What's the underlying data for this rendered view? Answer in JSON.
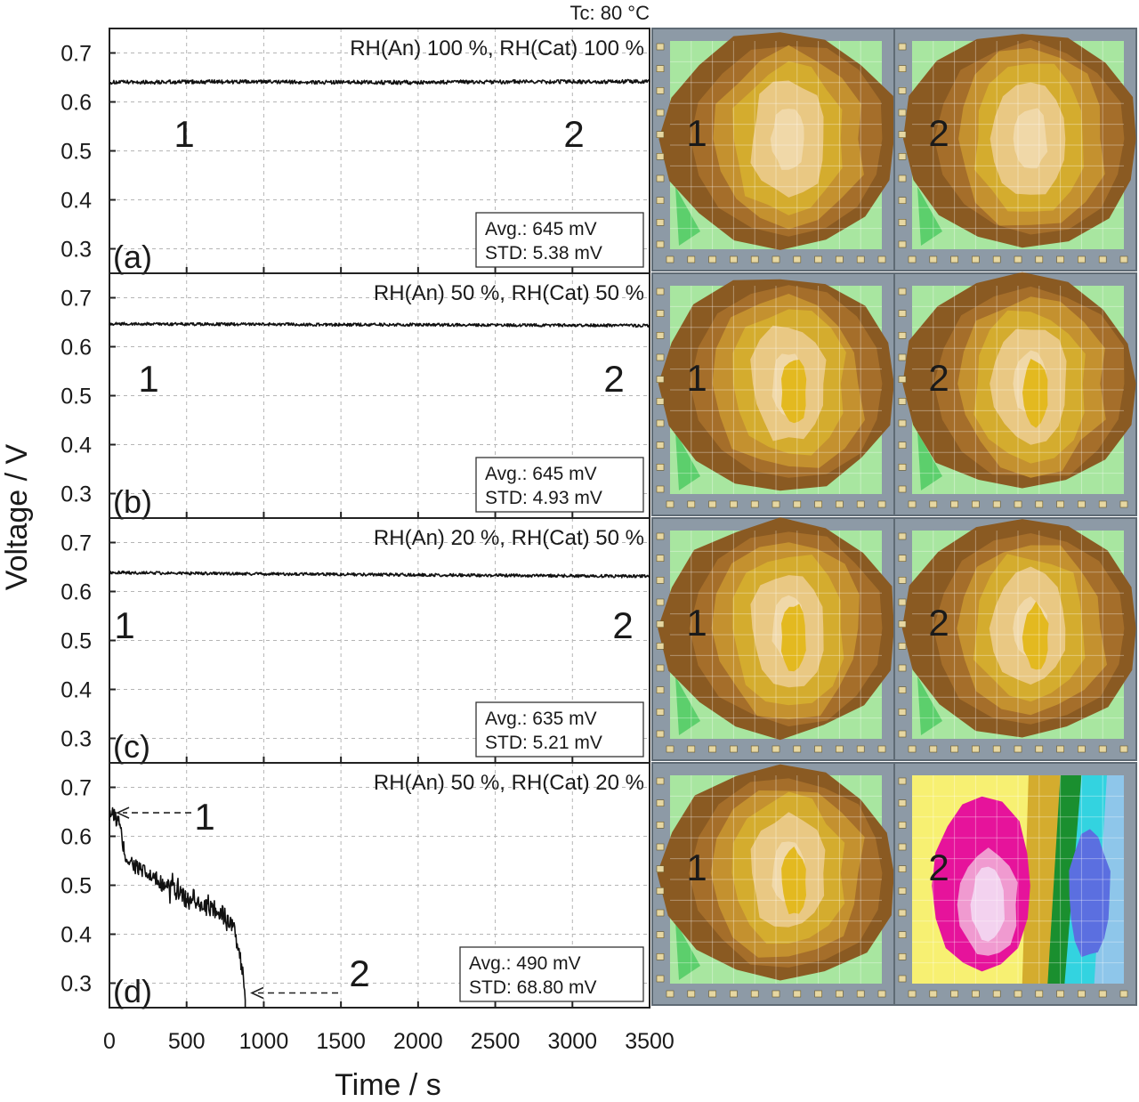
{
  "header": "Tc: 80 °C",
  "chart_data": {
    "type": "line",
    "xlabel": "Time / s",
    "ylabel": "Voltage / V",
    "xlim": [
      0,
      3500
    ],
    "ylim": [
      0.25,
      0.75
    ],
    "x_ticks": [
      "0",
      "500",
      "1000",
      "1500",
      "2000",
      "2500",
      "3000",
      "3500"
    ],
    "y_ticks": [
      "0.3",
      "0.4",
      "0.5",
      "0.6",
      "0.7"
    ],
    "grid": true,
    "panels": [
      {
        "label": "(a)",
        "condition": "RH(An) 100 %, RH(Cat) 100 %",
        "avg": "Avg.: 645 mV",
        "std": "STD: 5.38 mV",
        "point_1": "1",
        "point_2": "2",
        "series": {
          "x": [
            0,
            500,
            1000,
            1500,
            2000,
            2500,
            3000,
            3500
          ],
          "y": [
            0.64,
            0.641,
            0.641,
            0.64,
            0.64,
            0.641,
            0.641,
            0.642
          ],
          "noise": 0.004,
          "x_end": 3500
        }
      },
      {
        "label": "(b)",
        "condition": "RH(An) 50 %, RH(Cat) 50 %",
        "avg": "Avg.: 645 mV",
        "std": "STD: 4.93 mV",
        "point_1": "1",
        "point_2": "2",
        "series": {
          "x": [
            0,
            500,
            1000,
            1500,
            2000,
            2500,
            3000,
            3500
          ],
          "y": [
            0.647,
            0.646,
            0.646,
            0.645,
            0.645,
            0.644,
            0.644,
            0.643
          ],
          "noise": 0.003,
          "x_end": 3500
        }
      },
      {
        "label": "(c)",
        "condition": "RH(An) 20 %, RH(Cat) 50 %",
        "avg": "Avg.: 635 mV",
        "std": "STD: 5.21 mV",
        "point_1": "1",
        "point_2": "2",
        "series": {
          "x": [
            0,
            500,
            1000,
            1500,
            2000,
            2500,
            3000,
            3500
          ],
          "y": [
            0.639,
            0.637,
            0.636,
            0.635,
            0.634,
            0.633,
            0.632,
            0.631
          ],
          "noise": 0.003,
          "x_end": 3500
        }
      },
      {
        "label": "(d)",
        "condition": "RH(An) 50 %, RH(Cat) 20 %",
        "avg": "Avg.: 490 mV",
        "std": "STD: 68.80 mV",
        "point_1": "1",
        "point_2": "2",
        "series": {
          "x": [
            0,
            60,
            100,
            150,
            200,
            300,
            400,
            500,
            600,
            700,
            800,
            860,
            880
          ],
          "y": [
            0.65,
            0.63,
            0.56,
            0.545,
            0.53,
            0.51,
            0.495,
            0.47,
            0.46,
            0.45,
            0.42,
            0.33,
            0.28
          ],
          "noise": 0.018,
          "x_end": 880
        }
      }
    ]
  },
  "maps": {
    "colors": {
      "frame": "#8d9aa6",
      "frame_border": "#5f6b75",
      "tab": "#e6d7a2",
      "green_light": "#a8e6a0",
      "green": "#5ccf6c",
      "brown_dark": "#8a5a22",
      "brown": "#a56e2a",
      "tan": "#c4912f",
      "gold": "#d4ac2e",
      "pale": "#e9c883",
      "cream": "#f0d8a8",
      "yellow": "#e3b920",
      "magenta": "#e6139b",
      "pink": "#f09ad0",
      "lilac": "#f3d2ef",
      "bright_yellow": "#f7f072",
      "cyan": "#33d3e0",
      "sky": "#8ec6ea",
      "blue": "#5b6fe0",
      "dark_green": "#1a8f2f"
    },
    "map_labels": [
      [
        "1",
        "2"
      ],
      [
        "1",
        "2"
      ],
      [
        "1",
        "2"
      ],
      [
        "1",
        "2"
      ]
    ]
  }
}
